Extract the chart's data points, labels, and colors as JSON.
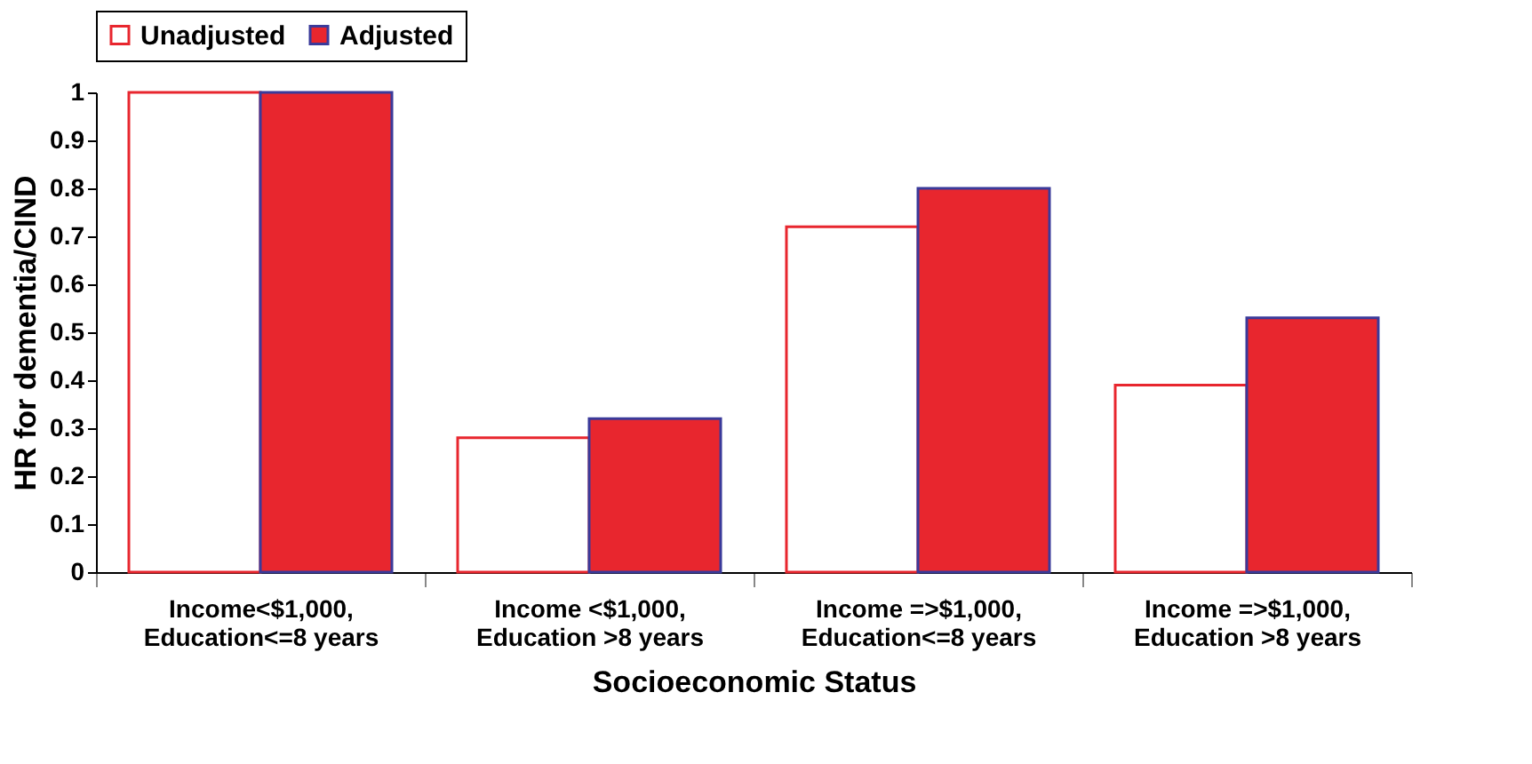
{
  "chart_data": {
    "type": "bar",
    "xlabel": "Socioeconomic Status",
    "ylabel": "HR for dementia/CIND",
    "categories": [
      "Income<$1,000, Education<=8 years",
      "Income <$1,000, Education >8 years",
      "Income =>$1,000, Education<=8 years",
      "Income =>$1,000, Education >8 years"
    ],
    "series": [
      {
        "name": "Unadjusted",
        "color": "#ffffff",
        "values": [
          1.0,
          0.28,
          0.72,
          0.39
        ]
      },
      {
        "name": "Adjusted",
        "color": "#e8262e",
        "values": [
          1.0,
          0.32,
          0.8,
          0.53
        ]
      }
    ],
    "ylim": [
      0,
      1
    ],
    "yticks": [
      0,
      0.1,
      0.2,
      0.3,
      0.4,
      0.5,
      0.6,
      0.7,
      0.8,
      0.9,
      1
    ],
    "grid": false,
    "legend": "top"
  }
}
